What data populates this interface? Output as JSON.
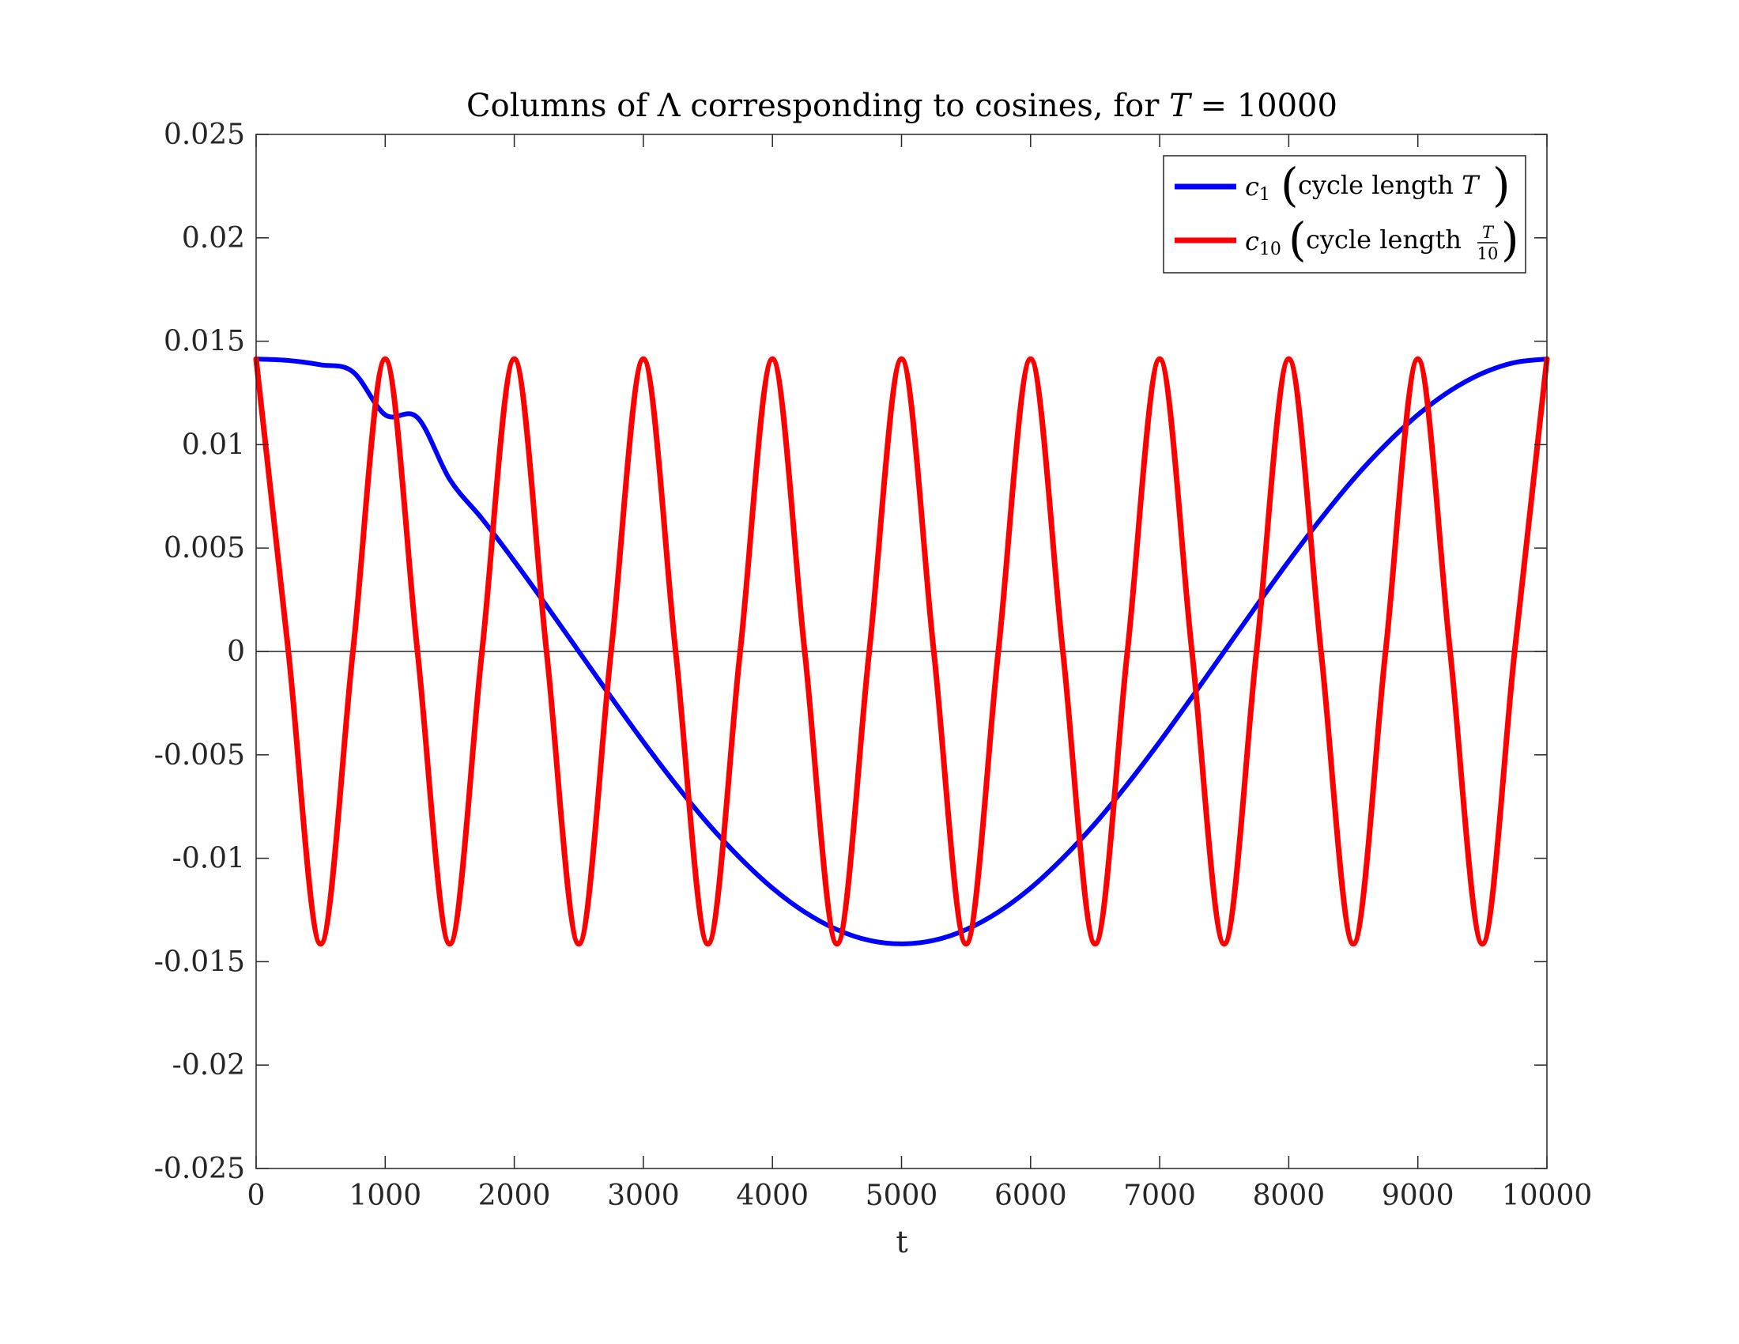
{
  "chart_data": {
    "type": "line",
    "title": {
      "prefix": "Columns of Λ corresponding to cosines, for ",
      "var": "T",
      "suffix": " = 10000"
    },
    "xlabel": "t",
    "ylabel": "",
    "xlim": [
      0,
      10000
    ],
    "ylim": [
      -0.025,
      0.025
    ],
    "xticks": [
      0,
      1000,
      2000,
      3000,
      4000,
      5000,
      6000,
      7000,
      8000,
      9000,
      10000
    ],
    "xtick_labels": [
      "0",
      "1000",
      "2000",
      "3000",
      "4000",
      "5000",
      "6000",
      "7000",
      "8000",
      "9000",
      "10000"
    ],
    "yticks": [
      0.025,
      0.02,
      0.015,
      0.01,
      0.005,
      0,
      -0.005,
      -0.01,
      -0.015,
      -0.02,
      -0.025
    ],
    "ytick_labels": [
      "0.025",
      "0.02",
      "0.015",
      "0.01",
      "0.005",
      "0",
      "-0.005",
      "-0.01",
      "-0.015",
      "-0.02",
      "-0.025"
    ],
    "zero_line": true,
    "grid": false,
    "legend_position": "top-right",
    "series": [
      {
        "name": "c1 (cycle length T)",
        "legend": {
          "symbol": "c",
          "sub": "1",
          "text": "cycle length ",
          "var": "T"
        },
        "color": "#0000ff",
        "x": [
          0,
          250,
          500,
          750,
          1000,
          1250,
          1500,
          1750,
          2000,
          2250,
          2500,
          2750,
          3000,
          3250,
          3500,
          3750,
          4000,
          4250,
          4500,
          4750,
          5000,
          5250,
          5500,
          5750,
          6000,
          6250,
          6500,
          6750,
          7000,
          7250,
          7500,
          7750,
          8000,
          8250,
          8500,
          8750,
          9000,
          9250,
          9500,
          9750,
          10000
        ],
        "y": [
          0.01414,
          0.01407,
          0.01386,
          0.01352,
          0.01144,
          0.01131,
          0.00832,
          0.00642,
          0.00437,
          0.00221,
          0.0,
          -0.00221,
          -0.00437,
          -0.00642,
          -0.00832,
          -0.00999,
          -0.01144,
          -0.0126,
          -0.01345,
          -0.01397,
          -0.01414,
          -0.01397,
          -0.01345,
          -0.0126,
          -0.01144,
          -0.00999,
          -0.00832,
          -0.00642,
          -0.00437,
          -0.00221,
          0.0,
          0.00221,
          0.00437,
          0.00642,
          0.00832,
          0.00999,
          0.01144,
          0.0126,
          0.01345,
          0.01397,
          0.01414
        ]
      },
      {
        "name": "c10 (cycle length T/10)",
        "legend": {
          "symbol": "c",
          "sub": "10",
          "text": "cycle length ",
          "frac_num": "T",
          "frac_den": "10"
        },
        "color": "#ff0000",
        "x": [
          0,
          250,
          500,
          750,
          1000,
          1250,
          1500,
          1750,
          2000,
          2250,
          2500,
          2750,
          3000,
          3250,
          3500,
          3750,
          4000,
          4250,
          4500,
          4750,
          5000,
          5250,
          5500,
          5750,
          6000,
          6250,
          6500,
          6750,
          7000,
          7250,
          7500,
          7750,
          8000,
          8250,
          8500,
          8750,
          9000,
          9250,
          9500,
          9750,
          10000
        ],
        "y": [
          0.01414,
          0.0,
          -0.01414,
          0.0,
          0.01414,
          0.0,
          -0.01414,
          0.0,
          0.01414,
          0.0,
          -0.01414,
          0.0,
          0.01414,
          0.0,
          -0.01414,
          0.0,
          0.01414,
          0.0,
          -0.01414,
          0.0,
          0.01414,
          0.0,
          -0.01414,
          0.0,
          0.01414,
          0.0,
          -0.01414,
          0.0,
          0.01414,
          0.0,
          -0.01414,
          0.0,
          0.01414,
          0.0,
          -0.01414,
          0.0,
          0.01414,
          0.0,
          -0.01414,
          0.0,
          0.01414
        ]
      }
    ]
  }
}
